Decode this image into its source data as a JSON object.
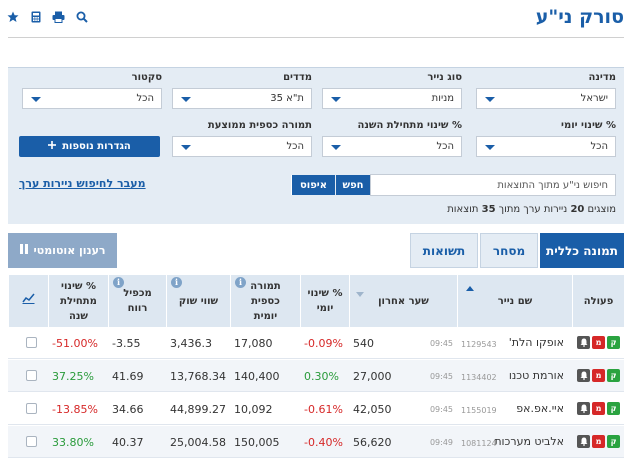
{
  "header": {
    "title": "סורק ני\"ע"
  },
  "filters": {
    "city": {
      "label": "מדינה",
      "value": "ישראל"
    },
    "type": {
      "label": "סוג נייר",
      "value": "מניות"
    },
    "index": {
      "label": "מדדים",
      "value": "ת\"א 35"
    },
    "sector": {
      "label": "סקטור",
      "value": "הכל"
    },
    "daily": {
      "label": "% שינוי יומי",
      "value": "הכל"
    },
    "ytd": {
      "label": "% שינוי מתחילת השנה",
      "value": "הכל"
    },
    "turnover": {
      "label": "תמורה כספית ממוצעת",
      "value": "הכל"
    },
    "more_label": "הגדרות נוספות",
    "search_placeholder": "חיפוש ני\"ע מתוך התוצאות",
    "search_btn": "חפש",
    "reset_btn": "איפוס",
    "advanced_link": "מעבר לחיפוש ניירות ערך",
    "results_prefix": "מוצגים",
    "results_shown": "20",
    "results_mid": "ניירות ערך מתוך",
    "results_total": "35",
    "results_suffix": "תוצאות"
  },
  "tabs": [
    {
      "label": "תמונה כללית"
    },
    {
      "label": "מסחר"
    },
    {
      "label": "תשואות"
    }
  ],
  "refresh_label": "רענון אוטומטי",
  "table": {
    "headers": {
      "action": "פעולה",
      "name": "שם נייר",
      "last": "שער אחרון",
      "daily": "% שינוי יומי",
      "turnover": "תמורה כספית יומית",
      "mcap": "שווי שוק",
      "pe": "מכפיל רווח",
      "ytd": "% שינוי מתחילת שנה"
    },
    "info_glyph": "i",
    "action_glyphs": {
      "buy": "ק",
      "sell": "מ"
    },
    "rows": [
      {
        "name": "אופקו הלת'",
        "id": "1129543",
        "time": "09:45",
        "last": "540",
        "daily": "-0.09%",
        "turnover": "17,080",
        "mcap": "3,436.3",
        "pe": "-3.55",
        "ytd": "-51.00%"
      },
      {
        "name": "אורמת טכנו",
        "id": "1134402",
        "time": "09:45",
        "last": "27,000",
        "daily": "0.30%",
        "turnover": "140,400",
        "mcap": "13,768.34",
        "pe": "41.69",
        "ytd": "37.25%"
      },
      {
        "name": "איי.אפ.אפ",
        "id": "1155019",
        "time": "09:45",
        "last": "42,050",
        "daily": "-0.61%",
        "turnover": "10,092",
        "mcap": "44,899.27",
        "pe": "34.66",
        "ytd": "-13.85%"
      },
      {
        "name": "אלביט מערכות",
        "id": "1081124",
        "time": "09:49",
        "last": "56,620",
        "daily": "-0.40%",
        "turnover": "150,005",
        "mcap": "25,004.58",
        "pe": "40.37",
        "ytd": "33.80%"
      }
    ]
  }
}
